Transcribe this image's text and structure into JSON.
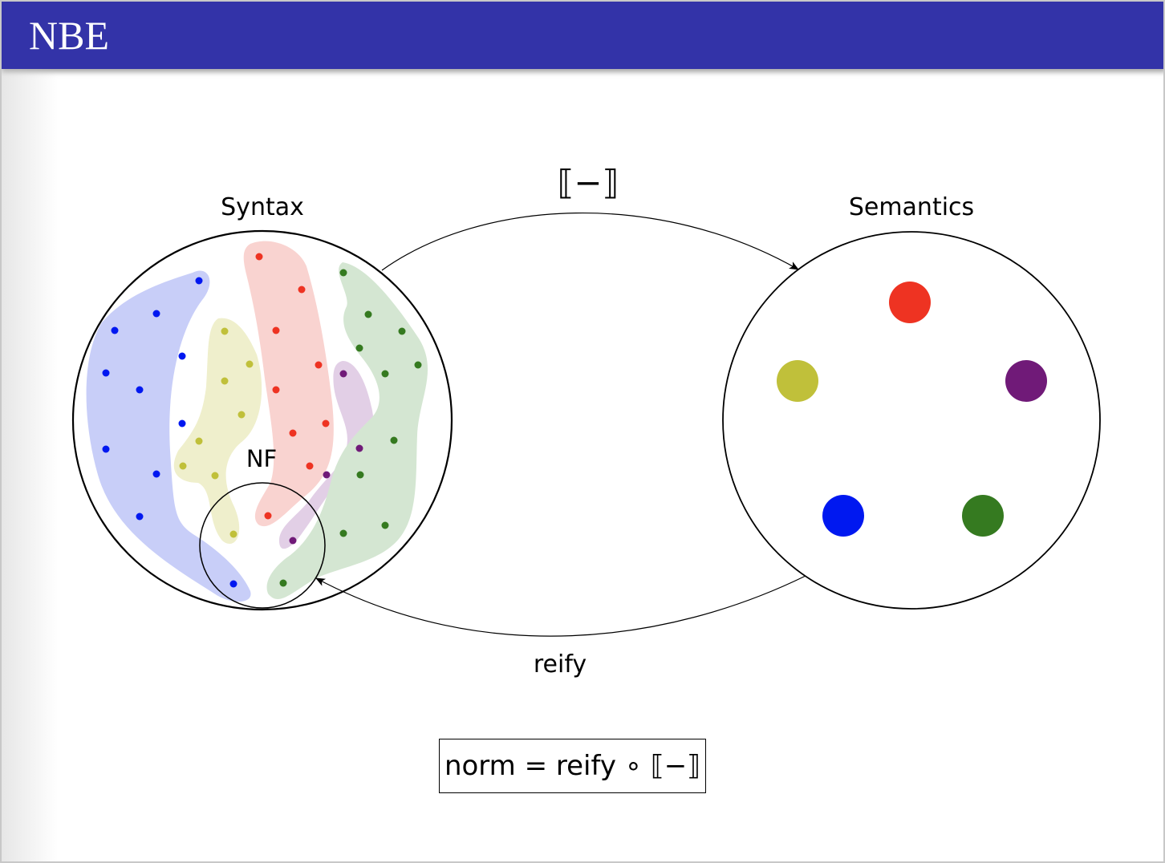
{
  "slide": {
    "title": "NBE"
  },
  "diagram": {
    "syntax_label": "Syntax",
    "semantics_label": "Semantics",
    "nf_label": "NF",
    "interpretation_label": "⟦−⟧",
    "reify_label": "reify",
    "formula": "norm = reify ∘ ⟦−⟧",
    "colors": {
      "blue": "#0018f0",
      "yellow": "#c0c03a",
      "red": "#ee3322",
      "purple": "#701a78",
      "green": "#357a20",
      "title_bar": "#3333a8"
    },
    "semantic_values": [
      {
        "color": "red"
      },
      {
        "color": "yellow"
      },
      {
        "color": "purple"
      },
      {
        "color": "blue"
      },
      {
        "color": "green"
      }
    ]
  }
}
